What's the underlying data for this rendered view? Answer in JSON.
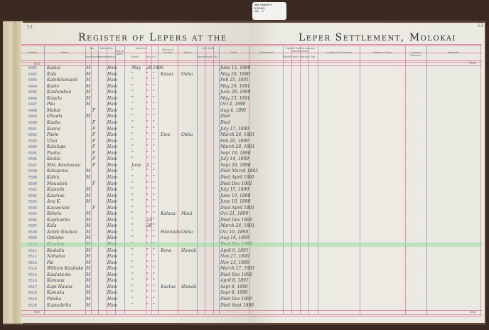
{
  "document": {
    "title_left": "Register of Lepers at the",
    "title_right": "Leper Settlement, Molokai",
    "page_number_left": "13",
    "page_number_right": "13",
    "total_label": "Total",
    "catalog_tag": [
      "360  HANSEN'S",
      "     DISEASE",
      "VOL. 4"
    ]
  },
  "colors": {
    "pink_rule": "#d9709a",
    "blue_rule": "#8a84c8",
    "highlight": "#96dca0"
  },
  "headers_left": [
    "Number",
    "Name",
    "Sex",
    "Male",
    "Female",
    "Nationality",
    "Hawaiian",
    "Foreign",
    "Age at Adm.",
    "Admitted",
    "Month",
    "Day",
    "A.D.",
    "District or Locality",
    "Island",
    "Civil State",
    "Married",
    "Single",
    "Div.",
    "Died"
  ],
  "headers_right": [
    "Discharged",
    "Date of Earliest Leprous Manifestation",
    "Months",
    "Years",
    "Macular",
    "Tub.",
    "Locality of First Lesion",
    "History of Case",
    "Leprous Relations",
    "Remarks"
  ],
  "rows": [
    {
      "number": "6491",
      "name": "Kaaua",
      "sex": "M",
      "nat": "Haw",
      "adm": [
        "May",
        "28",
        "1890"
      ],
      "district": "",
      "island": "",
      "date": "June 15, 1890"
    },
    {
      "number": "6492",
      "name": "Kala",
      "sex": "M",
      "nat": "Haw",
      "adm": [
        "\"",
        "\"",
        "\""
      ],
      "district": "Kauai",
      "island": "Oahu",
      "date": "May 20, 1890"
    },
    {
      "number": "6493",
      "name": "Kaleikilamaoli",
      "sex": "M",
      "nat": "Haw",
      "adm": [
        "\"",
        "\"",
        "\""
      ],
      "district": "",
      "island": "",
      "date": "Feb 25, 1891"
    },
    {
      "number": "6494",
      "name": "Kaelo",
      "sex": "M",
      "nat": "Haw",
      "adm": [
        "\"",
        "\"",
        "\""
      ],
      "district": "",
      "island": "",
      "date": "May 20, 1891"
    },
    {
      "number": "6495",
      "name": "Kauhaukua",
      "sex": "M",
      "nat": "Haw",
      "adm": [
        "\"",
        "\"",
        "\""
      ],
      "district": "",
      "island": "",
      "date": "June 28, 1890"
    },
    {
      "number": "6496",
      "name": "Kauela",
      "sex": "M",
      "nat": "Haw",
      "adm": [
        "\"",
        "\"",
        "\""
      ],
      "district": "",
      "island": "",
      "date": "May 23, 1891"
    },
    {
      "number": "6497",
      "name": "Pau",
      "sex": "M",
      "nat": "Haw",
      "adm": [
        "\"",
        "\"",
        "\""
      ],
      "district": "",
      "island": "",
      "date": "Oct 4, 1890"
    },
    {
      "number": "6498",
      "name": "Makai",
      "sex": "F",
      "nat": "Haw",
      "adm": [
        "\"",
        "\"",
        "\""
      ],
      "district": "",
      "island": "",
      "date": "Aug 4, 1891"
    },
    {
      "number": "6499",
      "name": "Ohuela",
      "sex": "M",
      "nat": "Haw",
      "adm": [
        "\"",
        "\"",
        "\""
      ],
      "district": "",
      "island": "",
      "date": "Died"
    },
    {
      "number": "6500",
      "name": "Kauka",
      "sex": "F",
      "nat": "Haw",
      "adm": [
        "\"",
        "\"",
        "\""
      ],
      "district": "",
      "island": "",
      "date": "Died"
    },
    {
      "number": "6501",
      "name": "Kaona",
      "sex": "F",
      "nat": "Haw",
      "adm": [
        "\"",
        "\"",
        "\""
      ],
      "district": "",
      "island": "",
      "date": "July 17, 1890"
    },
    {
      "number": "6502",
      "name": "Paele",
      "sex": "F",
      "nat": "Haw",
      "adm": [
        "\"",
        "\"",
        "\""
      ],
      "district": "Ewa",
      "island": "Oahu",
      "date": "March 26, 1891"
    },
    {
      "number": "6503",
      "name": "Ulua",
      "sex": "F",
      "nat": "Haw",
      "adm": [
        "\"",
        "\"",
        "\""
      ],
      "district": "",
      "island": "",
      "date": "Feb 26, 1890"
    },
    {
      "number": "6504",
      "name": "Kalalupe",
      "sex": "F",
      "nat": "Haw",
      "adm": [
        "\"",
        "\"",
        "\""
      ],
      "district": "",
      "island": "",
      "date": "March 28, 1891"
    },
    {
      "number": "6505",
      "name": "Puaha",
      "sex": "F",
      "nat": "Haw",
      "adm": [
        "\"",
        "\"",
        "\""
      ],
      "district": "",
      "island": "",
      "date": "Sept 18, 1890"
    },
    {
      "number": "6506",
      "name": "Keolio",
      "sex": "F",
      "nat": "Haw",
      "adm": [
        "\"",
        "\"",
        "\""
      ],
      "district": "",
      "island": "",
      "date": "July 14, 1890"
    },
    {
      "number": "6507",
      "name": "Mrs. Keohuawa",
      "sex": "F",
      "nat": "Haw",
      "adm": [
        "June",
        "2",
        "\""
      ],
      "district": "",
      "island": "",
      "date": "Sept 26, 1890"
    },
    {
      "number": "6508",
      "name": "Kekapona",
      "sex": "M",
      "nat": "Haw",
      "adm": [
        "\"",
        "\"",
        "\""
      ],
      "district": "",
      "island": "",
      "date": "Died March 1892"
    },
    {
      "number": "6509",
      "name": "Kahia",
      "sex": "M",
      "nat": "Haw",
      "adm": [
        "\"",
        "\"",
        "\""
      ],
      "district": "",
      "island": "",
      "date": "Died April 1891"
    },
    {
      "number": "6500",
      "name": "Moualani",
      "sex": "F",
      "nat": "Haw",
      "adm": [
        "\"",
        "\"",
        "\""
      ],
      "district": "",
      "island": "",
      "date": "Died Dec 1891"
    },
    {
      "number": "6501",
      "name": "Kapaola",
      "sex": "M",
      "nat": "Haw",
      "adm": [
        "\"",
        "\"",
        "\""
      ],
      "district": "",
      "island": "",
      "date": "July 15, 1890"
    },
    {
      "number": "6502",
      "name": "Kaumae",
      "sex": "M",
      "nat": "Haw",
      "adm": [
        "\"",
        "\"",
        "\""
      ],
      "district": "",
      "island": "",
      "date": "June 10, 1890"
    },
    {
      "number": "6503",
      "name": "Ana K.",
      "sex": "M",
      "nat": "Haw",
      "adm": [
        "\"",
        "\"",
        "\""
      ],
      "district": "",
      "island": "",
      "date": "June 10, 1890"
    },
    {
      "number": "6504",
      "name": "Kauwelani",
      "sex": "F",
      "nat": "Haw",
      "adm": [
        "\"",
        "\"",
        "\""
      ],
      "district": "",
      "island": "",
      "date": "Died April 1891"
    },
    {
      "number": "6505",
      "name": "Kekela",
      "sex": "M",
      "nat": "Haw",
      "adm": [
        "\"",
        "\"",
        "\""
      ],
      "district": "Kalaua",
      "island": "Maui",
      "date": "Oct 21, 1890"
    },
    {
      "number": "6506",
      "name": "Kapikaeho",
      "sex": "M",
      "nat": "Haw",
      "adm": [
        "\"",
        "23",
        "\""
      ],
      "district": "",
      "island": "",
      "date": "Died Dec 1890"
    },
    {
      "number": "6507",
      "name": "Kala",
      "sex": "M",
      "nat": "Haw",
      "adm": [
        "\"",
        "26",
        "\""
      ],
      "district": "",
      "island": "",
      "date": "March 24, 1891"
    },
    {
      "number": "6508",
      "name": "Annie Naukea",
      "sex": "M",
      "nat": "Haw",
      "adm": [
        "\"",
        "\"",
        "\""
      ],
      "district": "Honolulu",
      "island": "Oahu",
      "date": "Oct 10, 1890"
    },
    {
      "number": "6509",
      "name": "Opiopio",
      "sex": "M",
      "nat": "Haw",
      "adm": [
        "\"",
        "\"",
        "\""
      ],
      "district": "",
      "island": "",
      "date": "Aug 14, 1890"
    },
    {
      "number": "6510",
      "name": "Kaualoa",
      "sex": "M",
      "nat": "Haw",
      "adm": [
        "\"",
        "\"",
        "\""
      ],
      "district": "",
      "island": "",
      "date": "Died Dec 1890"
    },
    {
      "number": "6511",
      "name": "Kealalia",
      "sex": "M",
      "nat": "Haw",
      "adm": [
        "\"",
        "\"",
        "\""
      ],
      "district": "Kona",
      "island": "Hawaii",
      "date": "April 6, 1891"
    },
    {
      "number": "6512",
      "name": "Nahaloa",
      "sex": "M",
      "nat": "Haw",
      "adm": [
        "\"",
        "\"",
        "\""
      ],
      "district": "",
      "island": "",
      "date": "Nov 27, 1890"
    },
    {
      "number": "6513",
      "name": "Pai",
      "sex": "M",
      "nat": "Haw",
      "adm": [
        "\"",
        "\"",
        "\""
      ],
      "district": "",
      "island": "",
      "date": "Nov 13, 1890"
    },
    {
      "number": "6514",
      "name": "William Kaukeke",
      "sex": "M",
      "nat": "Haw",
      "adm": [
        "\"",
        "\"",
        "\""
      ],
      "district": "",
      "island": "",
      "date": "March 17, 1891"
    },
    {
      "number": "6515",
      "name": "Kaulakeola",
      "sex": "M",
      "nat": "Haw",
      "adm": [
        "\"",
        "\"",
        "\""
      ],
      "district": "",
      "island": "",
      "date": "Died Dec 1890"
    },
    {
      "number": "6516",
      "name": "Kamaua",
      "sex": "M",
      "nat": "Haw",
      "adm": [
        "\"",
        "\"",
        "\""
      ],
      "district": "",
      "island": "",
      "date": "April 8, 1891"
    },
    {
      "number": "6517",
      "name": "Kapi Hauna",
      "sex": "M",
      "nat": "Haw",
      "adm": [
        "\"",
        "\"",
        "\""
      ],
      "district": "Kaelua",
      "island": "Hawaii",
      "date": "Sept 8, 1890"
    },
    {
      "number": "6518",
      "name": "Kamaka",
      "sex": "M",
      "nat": "Haw",
      "adm": [
        "\"",
        "\"",
        "\""
      ],
      "district": "",
      "island": "",
      "date": "Sept 8, 1890"
    },
    {
      "number": "6519",
      "name": "Paleka",
      "sex": "M",
      "nat": "Haw",
      "adm": [
        "\"",
        "\"",
        "\""
      ],
      "district": "",
      "island": "",
      "date": "Died Dec 1890"
    },
    {
      "number": "6520",
      "name": "Kapualeiha",
      "sex": "M",
      "nat": "Haw",
      "adm": [
        "\"",
        "\"",
        "\""
      ],
      "district": "",
      "island": "",
      "date": "Died Sept 1890"
    }
  ]
}
